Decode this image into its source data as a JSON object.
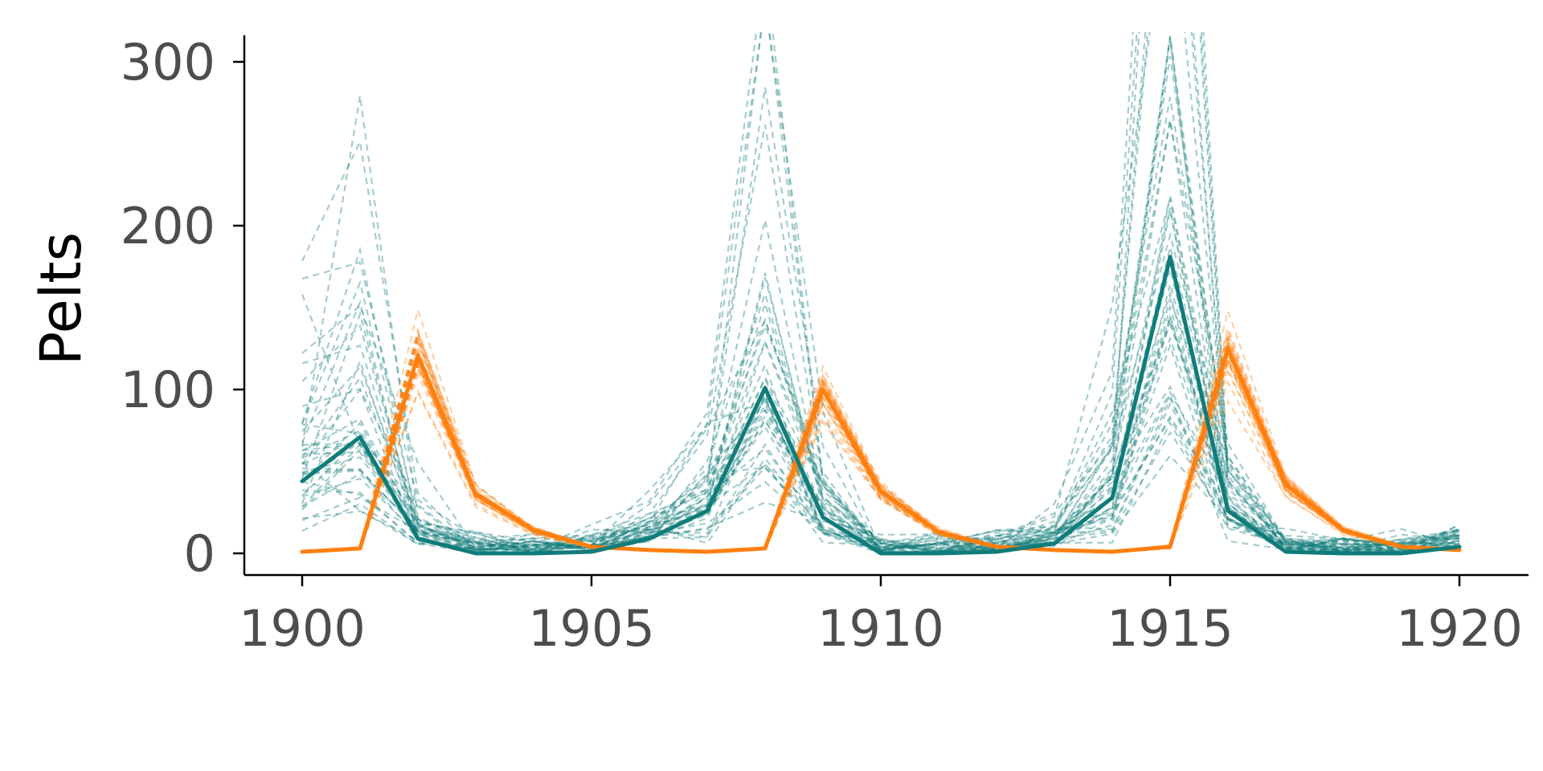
{
  "chart_data": {
    "type": "line",
    "title": "",
    "xlabel": "",
    "ylabel": "Pelts",
    "xlim": [
      1899,
      1921
    ],
    "ylim": [
      -15,
      315
    ],
    "x_ticks": [
      1900,
      1905,
      1910,
      1915,
      1920
    ],
    "y_ticks": [
      0,
      100,
      200,
      300
    ],
    "grid": false,
    "legend": "none",
    "colors": {
      "teal": "#0f7c7a",
      "orange": "#ff7f0e",
      "axis": "#000000",
      "tick_text": "#4d4d4d"
    },
    "x": [
      1900,
      1901,
      1902,
      1903,
      1904,
      1905,
      1906,
      1907,
      1908,
      1909,
      1910,
      1911,
      1912,
      1913,
      1914,
      1915,
      1916,
      1917,
      1918,
      1919,
      1920
    ],
    "series": [
      {
        "color": "#0f7c7a",
        "values": [
          44,
          71,
          9,
          0,
          0,
          1,
          9,
          26,
          101,
          22,
          0,
          0,
          1,
          6,
          34,
          181,
          26,
          1,
          0,
          0,
          4
        ]
      },
      {
        "color": "#ff7f0e",
        "values": [
          1,
          3,
          121,
          36,
          14,
          4,
          2,
          1,
          3,
          100,
          38,
          13,
          4,
          2,
          1,
          4,
          125,
          42,
          14,
          4,
          2
        ]
      }
    ],
    "simulations": {
      "teal_count": 40,
      "orange_count": 30,
      "style": "dashed"
    }
  }
}
